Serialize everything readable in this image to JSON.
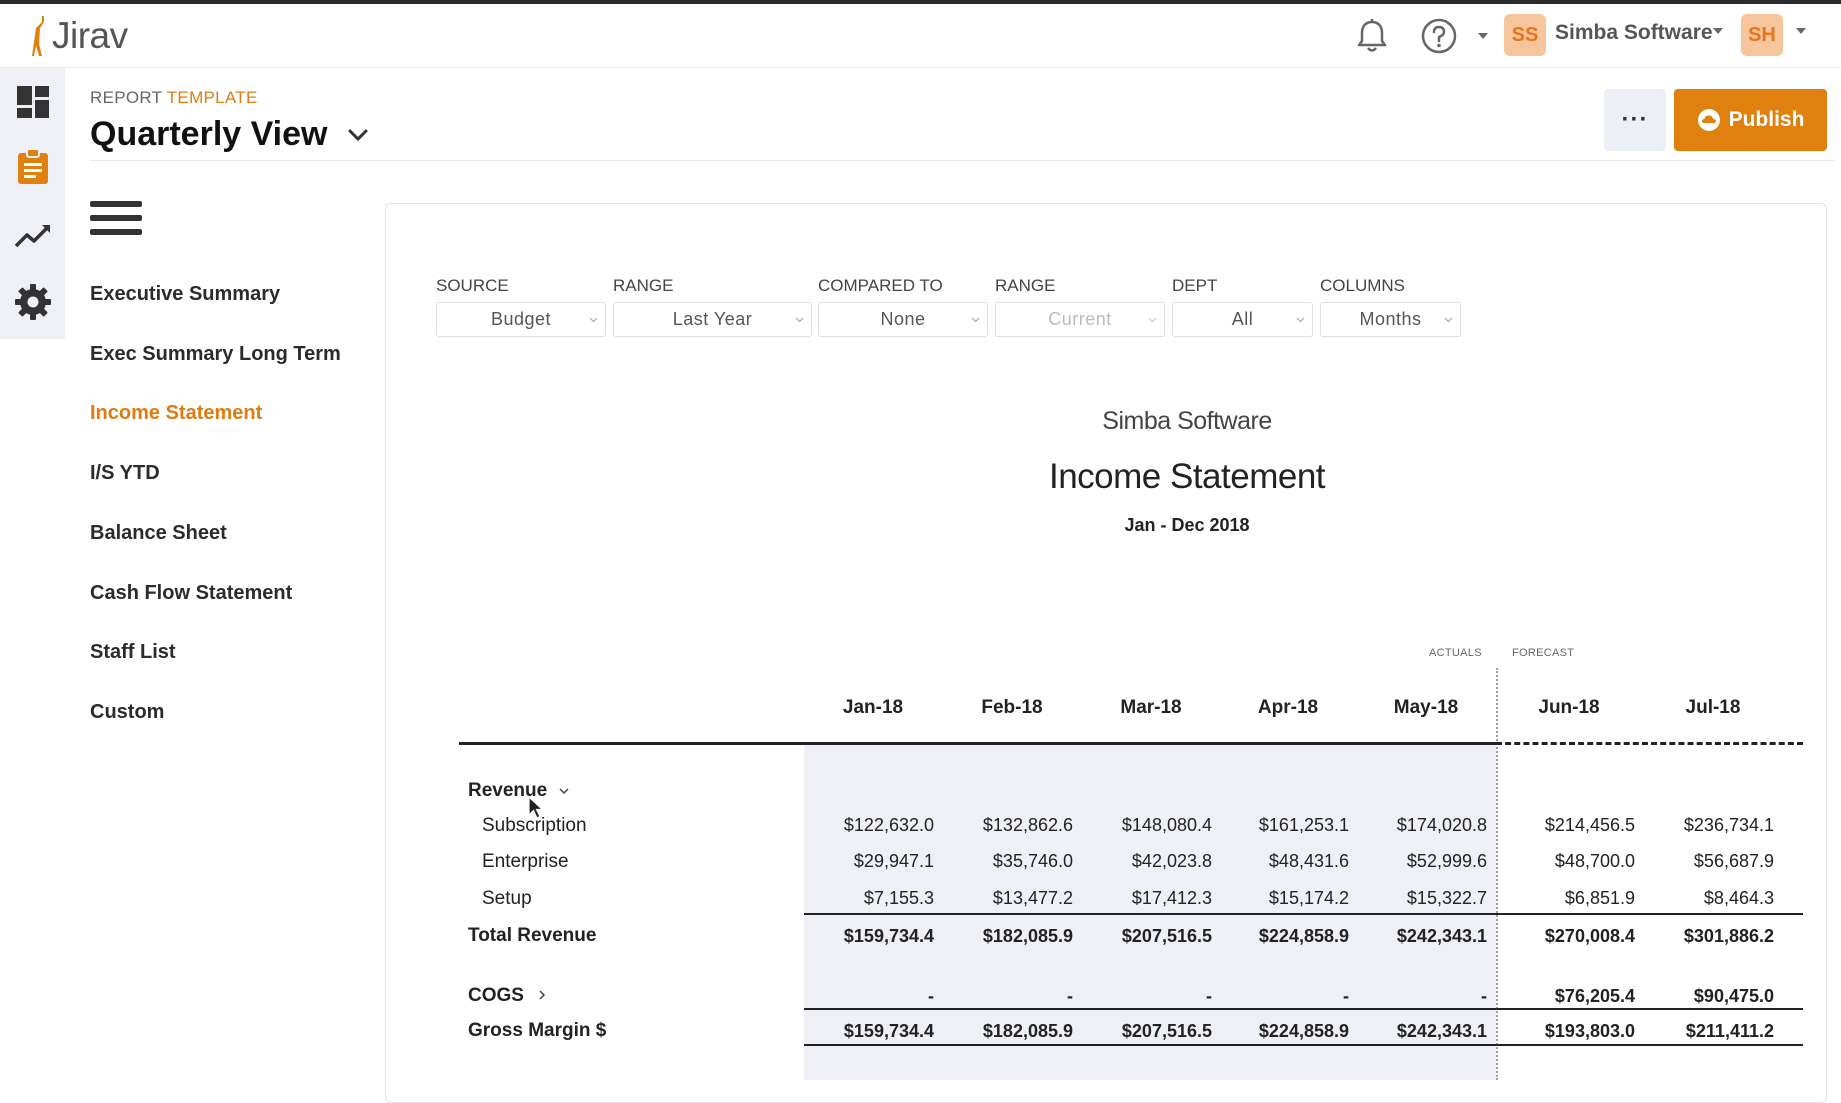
{
  "app": {
    "name": "Jirav"
  },
  "header": {
    "org_avatar": "SS",
    "org_name": "Simba Software",
    "user_avatar": "SH",
    "icons": [
      "bell-icon",
      "help-icon"
    ]
  },
  "rail": {
    "icons": [
      "dashboard-icon",
      "reports-icon",
      "trend-icon",
      "settings-icon"
    ]
  },
  "page": {
    "crumb_prefix": "REPORT",
    "crumb_highlight": "TEMPLATE",
    "title": "Quarterly View",
    "more_label": "···",
    "publish_label": "Publish"
  },
  "nav": {
    "items": [
      "Executive Summary",
      "Exec Summary Long Term",
      "Income Statement",
      "I/S YTD",
      "Balance Sheet",
      "Cash Flow Statement",
      "Staff List",
      "Custom"
    ],
    "active": "Income Statement"
  },
  "filters": [
    {
      "label": "SOURCE",
      "value": "Budget"
    },
    {
      "label": "RANGE",
      "value": "Last Year"
    },
    {
      "label": "COMPARED TO",
      "value": "None"
    },
    {
      "label": "RANGE",
      "value": "Current",
      "disabled": true
    },
    {
      "label": "DEPT",
      "value": "All"
    },
    {
      "label": "COLUMNS",
      "value": "Months"
    }
  ],
  "report": {
    "company": "Simba Software",
    "title": "Income Statement",
    "period": "Jan - Dec 2018",
    "actuals_tag": "ACTUALS",
    "forecast_tag": "FORECAST",
    "columns": [
      "Jan-18",
      "Feb-18",
      "Mar-18",
      "Apr-18",
      "May-18",
      "Jun-18",
      "Jul-18"
    ],
    "revenue_label": "Revenue",
    "rows": {
      "subscription": {
        "label": "Subscription",
        "values": [
          "$122,632.0",
          "$132,862.6",
          "$148,080.4",
          "$161,253.1",
          "$174,020.8",
          "$214,456.5",
          "$236,734.1"
        ]
      },
      "enterprise": {
        "label": "Enterprise",
        "values": [
          "$29,947.1",
          "$35,746.0",
          "$42,023.8",
          "$48,431.6",
          "$52,999.6",
          "$48,700.0",
          "$56,687.9"
        ]
      },
      "setup": {
        "label": "Setup",
        "values": [
          "$7,155.3",
          "$13,477.2",
          "$17,412.3",
          "$15,174.2",
          "$15,322.7",
          "$6,851.9",
          "$8,464.3"
        ]
      },
      "total_revenue": {
        "label": "Total Revenue",
        "values": [
          "$159,734.4",
          "$182,085.9",
          "$207,516.5",
          "$224,858.9",
          "$242,343.1",
          "$270,008.4",
          "$301,886.2"
        ]
      },
      "cogs": {
        "label": "COGS",
        "values": [
          "-",
          "-",
          "-",
          "-",
          "-",
          "$76,205.4",
          "$90,475.0"
        ]
      },
      "gross_margin": {
        "label": "Gross Margin $",
        "values": [
          "$159,734.4",
          "$182,085.9",
          "$207,516.5",
          "$224,858.9",
          "$242,343.1",
          "$193,803.0",
          "$211,411.2"
        ]
      }
    }
  },
  "colors": {
    "accent": "#e0800f",
    "actuals_bg": "#eef0f6",
    "rail_bg": "#eef0f5"
  }
}
